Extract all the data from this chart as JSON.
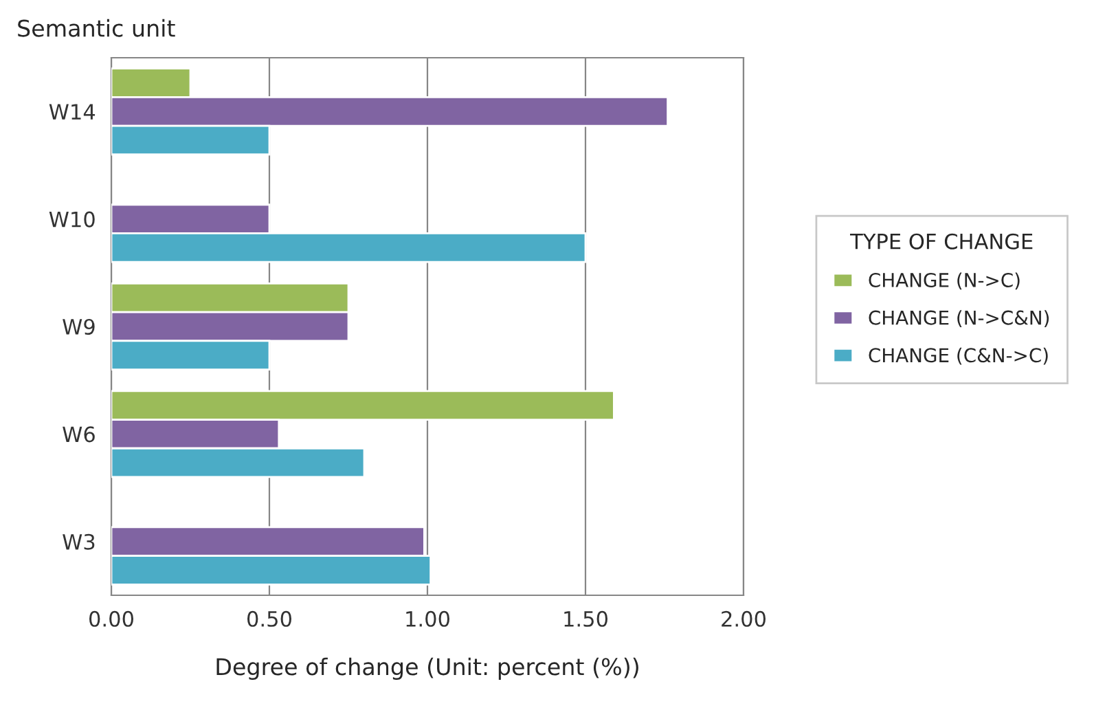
{
  "chart_data": {
    "type": "bar",
    "orientation": "horizontal",
    "xlabel": "Degree of change (Unit: percent (%))",
    "ylabel": "Semantic unit",
    "legend_title": "TYPE OF CHANGE",
    "categories": [
      "W14",
      "W10",
      "W9",
      "W6",
      "W3"
    ],
    "series": [
      {
        "name": "CHANGE (N->C)",
        "color": "#9bbb59",
        "values": [
          0.25,
          null,
          0.75,
          1.59,
          null
        ]
      },
      {
        "name": "CHANGE (N->C&N)",
        "color": "#8064a2",
        "values": [
          1.76,
          0.5,
          0.75,
          0.53,
          0.99
        ]
      },
      {
        "name": "CHANGE (C&N->C)",
        "color": "#4bacc6",
        "values": [
          0.5,
          1.5,
          0.5,
          0.8,
          1.01
        ]
      }
    ],
    "xlim": [
      0,
      2
    ],
    "xticks": [
      {
        "value": 0,
        "label": "0.00"
      },
      {
        "value": 0.5,
        "label": "0.50"
      },
      {
        "value": 1,
        "label": "1.00"
      },
      {
        "value": 1.5,
        "label": "1.50"
      },
      {
        "value": 2,
        "label": "2.00"
      }
    ],
    "grid": "x",
    "legend": "right"
  }
}
